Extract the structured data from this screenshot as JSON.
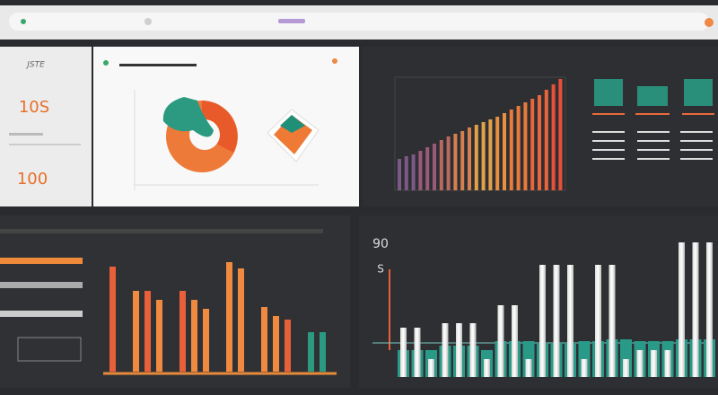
{
  "sidebar": {
    "label": "JSTE",
    "stat_top": "10S",
    "stat_bottom": "100"
  },
  "growth_chart": {
    "type": "bar",
    "values": [
      35,
      38,
      40,
      44,
      48,
      52,
      56,
      60,
      63,
      66,
      70,
      73,
      76,
      79,
      82,
      86,
      90,
      94,
      98,
      102,
      106,
      112,
      118,
      124
    ]
  },
  "group_chart": {
    "type": "bar",
    "values": [
      117,
      0,
      90,
      90,
      80,
      0,
      90,
      80,
      70,
      0,
      122,
      115,
      0,
      72,
      62,
      58,
      0,
      44,
      44
    ]
  },
  "compare_chart": {
    "type": "bar",
    "axis_top": "90",
    "axis_mid": "S",
    "tall_values": [
      55,
      55,
      20,
      60,
      60,
      60,
      20,
      80,
      80,
      20,
      125,
      125,
      125,
      20,
      125,
      125,
      20,
      30,
      30,
      30,
      150,
      150,
      150
    ],
    "low_values": [
      30,
      30,
      30,
      35,
      35,
      35,
      30,
      40,
      40,
      40,
      38,
      38,
      38,
      40,
      40,
      42,
      42,
      40,
      40,
      40,
      42,
      42,
      42
    ]
  }
}
